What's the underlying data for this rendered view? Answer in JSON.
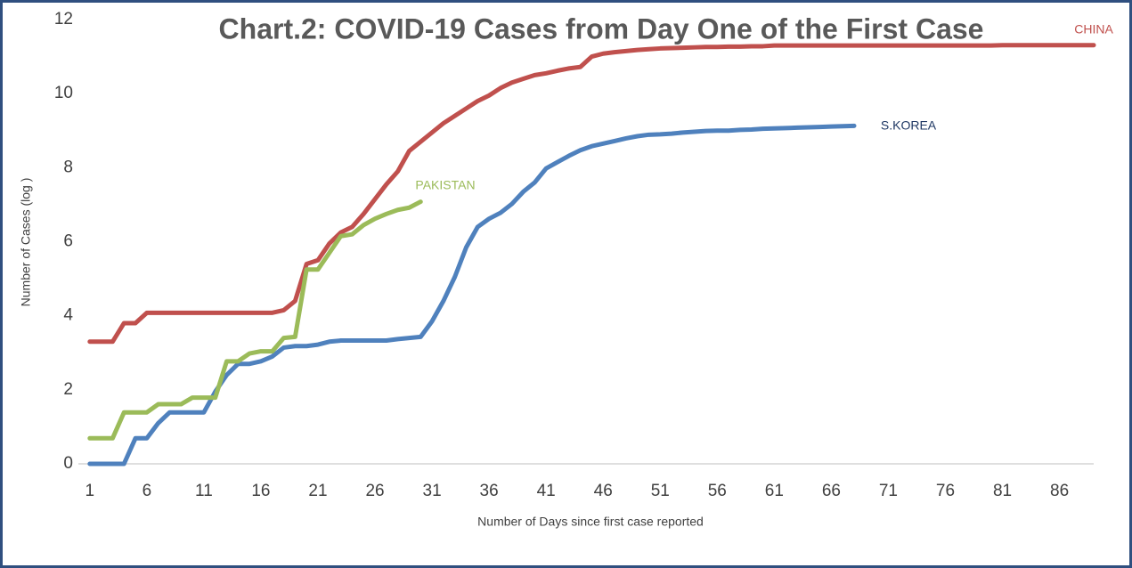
{
  "chart_data": {
    "type": "line",
    "title": "Chart.2: COVID-19 Cases from Day One of the First Case",
    "xlabel": "Number of Days since first case reported",
    "ylabel": "Number of Cases (log )",
    "x": [
      1,
      2,
      3,
      4,
      5,
      6,
      7,
      8,
      9,
      10,
      11,
      12,
      13,
      14,
      15,
      16,
      17,
      18,
      19,
      20,
      21,
      22,
      23,
      24,
      25,
      26,
      27,
      28,
      29,
      30,
      31,
      32,
      33,
      34,
      35,
      36,
      37,
      38,
      39,
      40,
      41,
      42,
      43,
      44,
      45,
      46,
      47,
      48,
      49,
      50,
      51,
      52,
      53,
      54,
      55,
      56,
      57,
      58,
      59,
      60,
      61,
      62,
      63,
      64,
      65,
      66,
      67,
      68,
      69,
      70,
      71,
      72,
      73,
      74,
      75,
      76,
      77,
      78,
      79,
      80,
      81,
      82,
      83,
      84,
      85,
      86,
      87,
      88,
      89
    ],
    "series": [
      {
        "name": "CHINA",
        "color": "#c0504d",
        "values": [
          3.3,
          3.3,
          3.3,
          3.8,
          3.8,
          4.08,
          4.08,
          4.08,
          4.08,
          4.08,
          4.08,
          4.08,
          4.08,
          4.08,
          4.08,
          4.08,
          4.08,
          4.15,
          4.4,
          5.4,
          5.5,
          5.95,
          6.25,
          6.4,
          6.75,
          7.15,
          7.55,
          7.9,
          8.45,
          8.7,
          8.95,
          9.2,
          9.4,
          9.6,
          9.8,
          9.95,
          10.15,
          10.3,
          10.4,
          10.5,
          10.55,
          10.62,
          10.68,
          10.72,
          11.0,
          11.08,
          11.12,
          11.15,
          11.18,
          11.2,
          11.22,
          11.23,
          11.24,
          11.25,
          11.26,
          11.26,
          11.27,
          11.27,
          11.28,
          11.28,
          11.3,
          11.3,
          11.3,
          11.3,
          11.3,
          11.3,
          11.3,
          11.3,
          11.3,
          11.3,
          11.3,
          11.3,
          11.3,
          11.3,
          11.3,
          11.3,
          11.3,
          11.3,
          11.3,
          11.3,
          11.31,
          11.31,
          11.31,
          11.31,
          11.31,
          11.31,
          11.31,
          11.31,
          11.31
        ]
      },
      {
        "name": "S.KOREA",
        "color": "#4f81bd",
        "values": [
          0,
          0,
          0,
          0,
          0.69,
          0.69,
          1.1,
          1.39,
          1.39,
          1.39,
          1.39,
          1.95,
          2.4,
          2.7,
          2.7,
          2.77,
          2.9,
          3.14,
          3.18,
          3.18,
          3.22,
          3.3,
          3.33,
          3.33,
          3.33,
          3.33,
          3.33,
          3.37,
          3.4,
          3.43,
          3.85,
          4.4,
          5.05,
          5.85,
          6.4,
          6.62,
          6.78,
          7.02,
          7.35,
          7.6,
          7.98,
          8.15,
          8.32,
          8.47,
          8.58,
          8.65,
          8.72,
          8.79,
          8.85,
          8.89,
          8.9,
          8.92,
          8.95,
          8.97,
          8.99,
          9.0,
          9.0,
          9.02,
          9.03,
          9.05,
          9.06,
          9.07,
          9.08,
          9.09,
          9.1,
          9.11,
          9.12,
          9.13,
          null,
          null,
          null,
          null,
          null,
          null,
          null,
          null,
          null,
          null,
          null,
          null,
          null,
          null,
          null,
          null,
          null,
          null,
          null,
          null,
          null
        ]
      },
      {
        "name": "PAKISTAN",
        "color": "#9bbb59",
        "values": [
          0.69,
          0.69,
          0.69,
          1.39,
          1.39,
          1.39,
          1.61,
          1.61,
          1.61,
          1.79,
          1.79,
          1.79,
          2.77,
          2.77,
          2.98,
          3.04,
          3.04,
          3.4,
          3.43,
          5.25,
          5.25,
          5.7,
          6.15,
          6.2,
          6.45,
          6.62,
          6.75,
          6.86,
          6.92,
          7.08,
          null,
          null,
          null,
          null,
          null,
          null,
          null,
          null,
          null,
          null,
          null,
          null,
          null,
          null,
          null,
          null,
          null,
          null,
          null,
          null,
          null,
          null,
          null,
          null,
          null,
          null,
          null,
          null,
          null,
          null,
          null,
          null,
          null,
          null,
          null,
          null,
          null,
          null,
          null,
          null,
          null,
          null,
          null,
          null,
          null,
          null,
          null,
          null,
          null,
          null,
          null,
          null,
          null,
          null,
          null,
          null,
          null,
          null,
          null
        ]
      }
    ],
    "xlim": [
      0,
      89
    ],
    "xticks": [
      1,
      6,
      11,
      16,
      21,
      26,
      31,
      36,
      41,
      46,
      51,
      56,
      61,
      66,
      71,
      76,
      81,
      86
    ],
    "ylim": [
      0,
      12
    ],
    "yticks": [
      0,
      2,
      4,
      6,
      8,
      10,
      12
    ],
    "grid": false
  }
}
